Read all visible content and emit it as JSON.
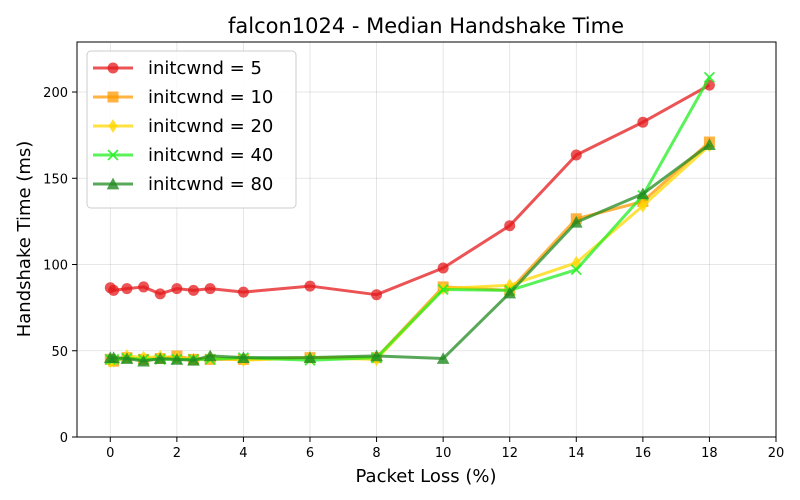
{
  "chart_data": {
    "type": "line",
    "title": "falcon1024 - Median Handshake Time",
    "xlabel": "Packet Loss (%)",
    "ylabel": "Handshake Time (ms)",
    "xlim": [
      -1,
      20
    ],
    "ylim": [
      0,
      229
    ],
    "xticks": [
      0,
      2,
      4,
      6,
      8,
      10,
      12,
      14,
      16,
      18,
      20
    ],
    "yticks": [
      0,
      50,
      100,
      150,
      200
    ],
    "grid": true,
    "legend_position": "top-left",
    "series": [
      {
        "name": "initcwnd = 5",
        "color": "#e41a1c",
        "marker": "circle",
        "x": [
          0,
          0.1,
          0.5,
          1,
          1.5,
          2,
          2.5,
          3,
          4,
          6,
          8,
          10,
          12,
          14,
          16,
          18
        ],
        "y": [
          86.5,
          85,
          86,
          87,
          83,
          86,
          85,
          86,
          84,
          87.5,
          82.5,
          98,
          122.5,
          163.5,
          182.5,
          204
        ]
      },
      {
        "name": "initcwnd = 10",
        "color": "#ff9900",
        "marker": "square",
        "x": [
          0,
          0.1,
          0.5,
          1,
          1.5,
          2,
          2.5,
          3,
          4,
          6,
          8,
          10,
          12,
          14,
          16,
          18
        ],
        "y": [
          45,
          44,
          46,
          45,
          45.5,
          47,
          45,
          45,
          45,
          46,
          46,
          87,
          85,
          126.5,
          136.5,
          171
        ]
      },
      {
        "name": "initcwnd = 20",
        "color": "#ffd700",
        "marker": "diamond",
        "x": [
          0,
          0.1,
          0.5,
          1,
          1.5,
          2,
          2.5,
          3,
          4,
          6,
          8,
          10,
          12,
          14,
          16,
          18
        ],
        "y": [
          44,
          44,
          47,
          46,
          46.5,
          46,
          45,
          46,
          44.5,
          46,
          45,
          86,
          88,
          101,
          134,
          169
        ]
      },
      {
        "name": "initcwnd = 40",
        "color": "#22ee22",
        "marker": "x",
        "x": [
          0,
          0.1,
          0.5,
          1,
          1.5,
          2,
          2.5,
          3,
          4,
          6,
          8,
          10,
          12,
          14,
          16,
          18
        ],
        "y": [
          45,
          45,
          45.5,
          45,
          45,
          45,
          45,
          45,
          46,
          44.5,
          46,
          85.5,
          85,
          97,
          140,
          208.5
        ]
      },
      {
        "name": "initcwnd = 80",
        "color": "#228B22",
        "marker": "triangle",
        "x": [
          0,
          0.1,
          0.5,
          1,
          1.5,
          2,
          2.5,
          3,
          4,
          6,
          8,
          10,
          12,
          14,
          16,
          18
        ],
        "y": [
          46,
          46,
          45.5,
          44,
          45.5,
          45,
          44.5,
          47,
          46,
          46,
          47,
          45.5,
          83.5,
          124.5,
          141,
          169.5
        ]
      }
    ]
  }
}
